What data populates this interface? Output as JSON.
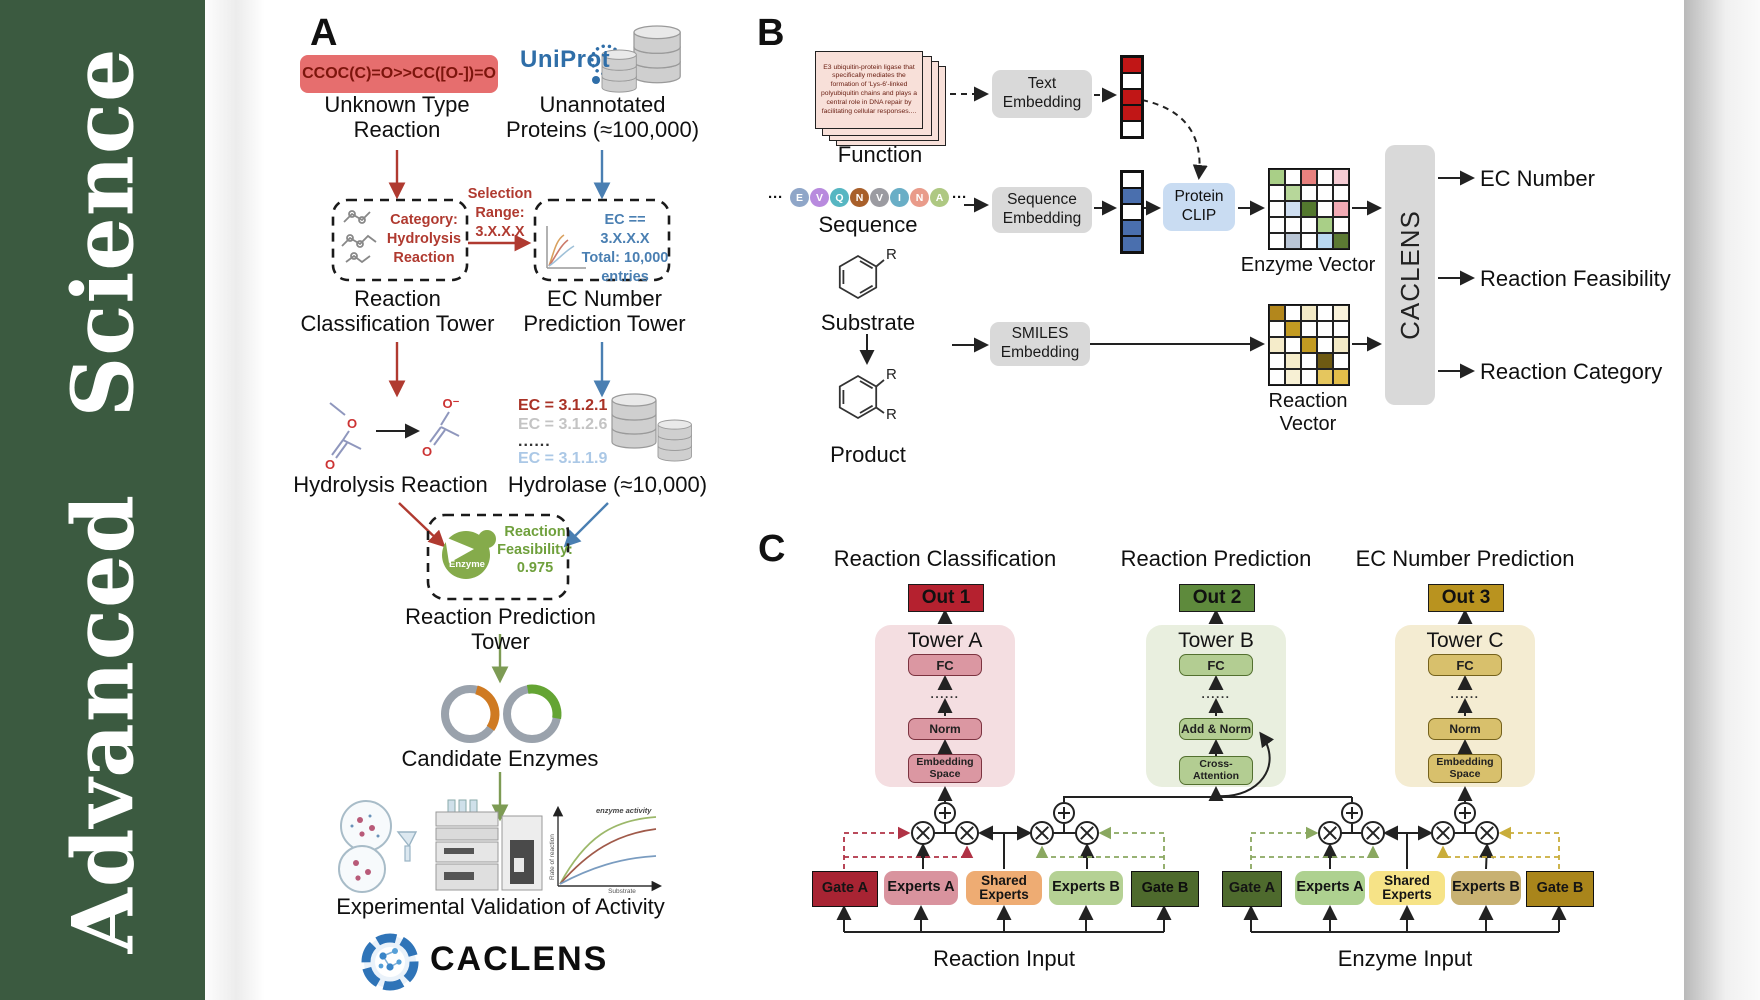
{
  "palette": {
    "journal_green": "#3b5a40",
    "red_flow": "#b03a30",
    "blue_flow": "#4a7fb2",
    "green_flow": "#7d9b54",
    "smiles_bg": "#e66e6e",
    "gray_box": "#d9d9d9",
    "clip_blue": "#c9dcf2",
    "card_pink": "#f8e0d9",
    "out1": "#b5212f",
    "out2": "#5e8a3c",
    "out3": "#b9931f",
    "towerA": "#f4dee1",
    "towerB": "#e9efdf",
    "towerC": "#f4ecd2"
  },
  "sidebar": {
    "journal": "Advanced Science"
  },
  "panelA": {
    "label": "A",
    "smiles": "CCOC(C)=O>>CC([O-])=O",
    "unknown_type": "Unknown Type\nReaction",
    "uniprot": "UniProt",
    "unannotated": "Unannotated\nProteins (≈100,000)",
    "selection_range": "Selection\nRange:\n3.X.X.X",
    "category_box": "Category:\nHydrolysis\nReaction",
    "ec_box": "EC == 3.X.X.X\nTotal: 10,000\nentries",
    "classification_tower": "Reaction\nClassification Tower",
    "ec_tower": "EC Number\nPrediction Tower",
    "ec_list": [
      "EC = 3.1.2.1",
      "EC = 3.1.2.6",
      "......",
      "EC = 3.1.1.9"
    ],
    "hydrolysis_reaction": "Hydrolysis Reaction",
    "hydrolase": "Hydrolase (≈10,000)",
    "atoms": {
      "o": "O",
      "o_minus": "O⁻"
    },
    "enzyme_badge": "Enzyme",
    "feasibility": "Reaction\nFeasibility:\n0.975",
    "prediction_tower": "Reaction Prediction Tower",
    "candidate_enzymes": "Candidate Enzymes",
    "validation": "Experimental Validation of Activity",
    "activity_plot": {
      "ylabel": "Rate of reaction",
      "xlabel": "Substrate",
      "annotation": "enzyme activity"
    },
    "logo": "CACLENS"
  },
  "panelB": {
    "label": "B",
    "function_card": "E3 ubiquitin-protein ligase that specifically mediates the formation of 'Lys-6'-linked polyubiquitin chains and plays a central role in DNA repair by facilitating cellular responses....",
    "function_label": "Function",
    "ellipsis": "···",
    "residues": [
      {
        "t": "E",
        "c": "#8fa6c8"
      },
      {
        "t": "V",
        "c": "#b88ade"
      },
      {
        "t": "Q",
        "c": "#56b6c2"
      },
      {
        "t": "N",
        "c": "#a85f2a"
      },
      {
        "t": "V",
        "c": "#9b9ba1"
      },
      {
        "t": "I",
        "c": "#69aec6"
      },
      {
        "t": "N",
        "c": "#e99b8a"
      },
      {
        "t": "A",
        "c": "#aec882"
      }
    ],
    "sequence_label": "Sequence",
    "substrate_label": "Substrate",
    "product_label": "Product",
    "r_group": "R",
    "text_embedding": "Text\nEmbedding",
    "sequence_embedding": "Sequence\nEmbedding",
    "smiles_embedding": "SMILES\nEmbedding",
    "protein_clip": "Protein\nCLIP",
    "enzyme_vector_label": "Enzyme Vector",
    "reaction_vector_label": "Reaction Vector",
    "caclens": "CACLENS",
    "outputs": [
      "EC Number",
      "Reaction Feasibility",
      "Reaction Category"
    ],
    "text_vector": [
      "#c11616",
      "#ffffff",
      "#c11616",
      "#c11616",
      "#ffffff"
    ],
    "seq_vector": [
      "#ffffff",
      "#4a6fae",
      "#ffffff",
      "#4a6fae",
      "#4a6fae"
    ],
    "enzyme_matrix": [
      [
        "#a9cf87",
        "#ffffff",
        "#e8817f",
        "#ffffff",
        "#f6ccd4"
      ],
      [
        "#ffffff",
        "#b7d79a",
        "#ffffff",
        "#ffffff",
        "#ffffff"
      ],
      [
        "#ffffff",
        "#cfdff2",
        "#53782e",
        "#ffffff",
        "#f2abb5"
      ],
      [
        "#ffffff",
        "#ffffff",
        "#ffffff",
        "#a9cf87",
        "#ffffff"
      ],
      [
        "#ffffff",
        "#bac6d6",
        "#ffffff",
        "#bad9f1",
        "#5c7a33"
      ]
    ],
    "reaction_matrix": [
      [
        "#b3871c",
        "#ffffff",
        "#f3eac6",
        "#ffffff",
        "#f9f2da"
      ],
      [
        "#ffffff",
        "#c39b22",
        "#ffffff",
        "#ffffff",
        "#ffffff"
      ],
      [
        "#f5ecca",
        "#ffffff",
        "#c39b22",
        "#ffffff",
        "#f3eac6"
      ],
      [
        "#ffffff",
        "#f5ecca",
        "#ffffff",
        "#6e5a12",
        "#ffffff"
      ],
      [
        "#ffffff",
        "#f7f0d4",
        "#ffffff",
        "#e5c65e",
        "#e2bd4a"
      ]
    ]
  },
  "panelC": {
    "label": "C",
    "titles": [
      "Reaction Classification",
      "Reaction Prediction",
      "EC Number Prediction"
    ],
    "outs": [
      "Out 1",
      "Out 2",
      "Out 3"
    ],
    "towers": [
      "Tower A",
      "Tower B",
      "Tower C"
    ],
    "layers": {
      "fc": "FC",
      "dots": "......",
      "norm": "Norm",
      "add_norm": "Add & Norm",
      "embedding": "Embedding\nSpace",
      "cross_attention": "Cross-\nAttention"
    },
    "moe": {
      "gate_a": "Gate A",
      "experts_a": "Experts A",
      "shared_experts": "Shared\nExperts",
      "experts_b": "Experts B",
      "gate_b": "Gate B"
    },
    "inputs": [
      "Reaction Input",
      "Enzyme Input"
    ]
  }
}
